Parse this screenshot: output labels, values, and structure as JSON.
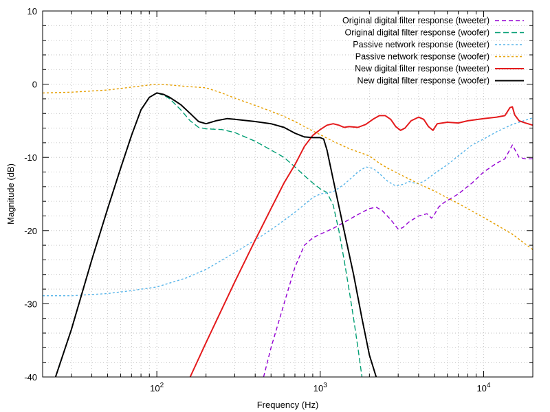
{
  "chart_data": {
    "type": "line",
    "xlabel": "Frequency (Hz)",
    "ylabel": "Magnitude (dB)",
    "xscale": "log",
    "xlim": [
      20,
      20000
    ],
    "ylim": [
      -40,
      10
    ],
    "x_ticks": [
      {
        "value": 100,
        "base": "10",
        "exp": "2"
      },
      {
        "value": 1000,
        "base": "10",
        "exp": "3"
      },
      {
        "value": 10000,
        "base": "10",
        "exp": "4"
      }
    ],
    "y_ticks": [
      {
        "value": 10,
        "label": "10"
      },
      {
        "value": 0,
        "label": "0"
      },
      {
        "value": -10,
        "label": "-10"
      },
      {
        "value": -20,
        "label": "-20"
      },
      {
        "value": -30,
        "label": "-30"
      },
      {
        "value": -40,
        "label": "-40"
      }
    ],
    "grid": true,
    "legend_position": "top-right",
    "series": [
      {
        "name": "Original digital filter response (tweeter)",
        "color": "#9400d3",
        "dash": "6,4",
        "width": 1.4,
        "points": [
          [
            450,
            -40
          ],
          [
            500,
            -36
          ],
          [
            600,
            -30
          ],
          [
            700,
            -25
          ],
          [
            800,
            -22
          ],
          [
            900,
            -21
          ],
          [
            1000,
            -20.5
          ],
          [
            1200,
            -19.7
          ],
          [
            1500,
            -18.5
          ],
          [
            1800,
            -17.5
          ],
          [
            2000,
            -17
          ],
          [
            2200,
            -16.8
          ],
          [
            2400,
            -17.3
          ],
          [
            2700,
            -18.5
          ],
          [
            3000,
            -19.8
          ],
          [
            3200,
            -19.6
          ],
          [
            3500,
            -18.8
          ],
          [
            4000,
            -18
          ],
          [
            4500,
            -17.7
          ],
          [
            4800,
            -18.3
          ],
          [
            5000,
            -17.8
          ],
          [
            5300,
            -16.8
          ],
          [
            5700,
            -16.2
          ],
          [
            7000,
            -15
          ],
          [
            8500,
            -13.5
          ],
          [
            10000,
            -12
          ],
          [
            12000,
            -10.8
          ],
          [
            13500,
            -10.2
          ],
          [
            15000,
            -8.3
          ],
          [
            16500,
            -10
          ],
          [
            18000,
            -10.2
          ],
          [
            20000,
            -10.2
          ]
        ]
      },
      {
        "name": "Original digital filter response (woofer)",
        "color": "#009e73",
        "dash": "8,4",
        "width": 1.4,
        "points": [
          [
            24,
            -40
          ],
          [
            30,
            -33.5
          ],
          [
            40,
            -24
          ],
          [
            50,
            -17
          ],
          [
            60,
            -11.5
          ],
          [
            70,
            -7
          ],
          [
            80,
            -3.5
          ],
          [
            90,
            -1.8
          ],
          [
            100,
            -1.2
          ],
          [
            110,
            -1.5
          ],
          [
            120,
            -2
          ],
          [
            140,
            -3.5
          ],
          [
            160,
            -5
          ],
          [
            180,
            -5.9
          ],
          [
            200,
            -6.1
          ],
          [
            250,
            -6.2
          ],
          [
            300,
            -6.6
          ],
          [
            400,
            -7.8
          ],
          [
            500,
            -9
          ],
          [
            600,
            -10
          ],
          [
            700,
            -11.3
          ],
          [
            800,
            -12.5
          ],
          [
            900,
            -13.5
          ],
          [
            1000,
            -14.3
          ],
          [
            1100,
            -14.8
          ],
          [
            1200,
            -16.5
          ],
          [
            1300,
            -20
          ],
          [
            1400,
            -24
          ],
          [
            1500,
            -28
          ],
          [
            1600,
            -32
          ],
          [
            1700,
            -36
          ],
          [
            1800,
            -40
          ]
        ]
      },
      {
        "name": "Passive network response (tweeter)",
        "color": "#56b4e9",
        "dash": "3,3",
        "width": 1.4,
        "points": [
          [
            20,
            -28.9
          ],
          [
            30,
            -28.9
          ],
          [
            50,
            -28.6
          ],
          [
            70,
            -28.2
          ],
          [
            100,
            -27.7
          ],
          [
            150,
            -26.5
          ],
          [
            200,
            -25.3
          ],
          [
            300,
            -23
          ],
          [
            400,
            -21.3
          ],
          [
            500,
            -19.9
          ],
          [
            700,
            -17.5
          ],
          [
            900,
            -15.5
          ],
          [
            1000,
            -15
          ],
          [
            1200,
            -14.7
          ],
          [
            1400,
            -13.7
          ],
          [
            1700,
            -12
          ],
          [
            1900,
            -11.3
          ],
          [
            2100,
            -11.5
          ],
          [
            2300,
            -12.2
          ],
          [
            2600,
            -13.3
          ],
          [
            2900,
            -13.9
          ],
          [
            3200,
            -13.7
          ],
          [
            3500,
            -13.3
          ],
          [
            3900,
            -13.6
          ],
          [
            4300,
            -13.3
          ],
          [
            5000,
            -12.2
          ],
          [
            6000,
            -11
          ],
          [
            7000,
            -9.8
          ],
          [
            8500,
            -8.3
          ],
          [
            10000,
            -7.5
          ],
          [
            12000,
            -6.5
          ],
          [
            15000,
            -5.5
          ],
          [
            20000,
            -4.6
          ]
        ]
      },
      {
        "name": "Passive network response (woofer)",
        "color": "#e69f00",
        "dash": "3,3",
        "width": 1.4,
        "points": [
          [
            20,
            -1.2
          ],
          [
            30,
            -1.1
          ],
          [
            50,
            -0.8
          ],
          [
            70,
            -0.4
          ],
          [
            90,
            -0.1
          ],
          [
            100,
            0
          ],
          [
            120,
            -0.1
          ],
          [
            150,
            -0.3
          ],
          [
            200,
            -0.5
          ],
          [
            250,
            -1.2
          ],
          [
            300,
            -1.9
          ],
          [
            400,
            -2.9
          ],
          [
            500,
            -3.7
          ],
          [
            600,
            -4.4
          ],
          [
            700,
            -5.1
          ],
          [
            800,
            -5.8
          ],
          [
            1000,
            -6.9
          ],
          [
            1200,
            -7.8
          ],
          [
            1500,
            -8.8
          ],
          [
            2000,
            -9.8
          ],
          [
            2300,
            -10.8
          ],
          [
            2600,
            -11.5
          ],
          [
            3000,
            -12.2
          ],
          [
            4000,
            -13.6
          ],
          [
            5000,
            -14.6
          ],
          [
            7000,
            -16.3
          ],
          [
            10000,
            -18.2
          ],
          [
            15000,
            -20.5
          ],
          [
            20000,
            -22.6
          ]
        ]
      },
      {
        "name": "New digital filter response (tweeter)",
        "color": "#e41a1c",
        "dash": "",
        "width": 2,
        "points": [
          [
            160,
            -40
          ],
          [
            200,
            -35.3
          ],
          [
            300,
            -27
          ],
          [
            400,
            -21.3
          ],
          [
            500,
            -17
          ],
          [
            600,
            -13.5
          ],
          [
            700,
            -11
          ],
          [
            800,
            -8.5
          ],
          [
            900,
            -7
          ],
          [
            1000,
            -6.2
          ],
          [
            1100,
            -5.6
          ],
          [
            1200,
            -5.4
          ],
          [
            1300,
            -5.6
          ],
          [
            1400,
            -5.9
          ],
          [
            1500,
            -5.8
          ],
          [
            1700,
            -5.9
          ],
          [
            1900,
            -5.5
          ],
          [
            2100,
            -4.8
          ],
          [
            2300,
            -4.3
          ],
          [
            2500,
            -4.3
          ],
          [
            2700,
            -4.8
          ],
          [
            2900,
            -5.8
          ],
          [
            3100,
            -6.3
          ],
          [
            3300,
            -6
          ],
          [
            3600,
            -5
          ],
          [
            4000,
            -4.5
          ],
          [
            4300,
            -4.8
          ],
          [
            4600,
            -5.8
          ],
          [
            4900,
            -6.3
          ],
          [
            5200,
            -5.4
          ],
          [
            6000,
            -5.2
          ],
          [
            7000,
            -5.3
          ],
          [
            8000,
            -5
          ],
          [
            10000,
            -4.7
          ],
          [
            12000,
            -4.5
          ],
          [
            13500,
            -4.3
          ],
          [
            14500,
            -3.2
          ],
          [
            15000,
            -3.1
          ],
          [
            15500,
            -4.2
          ],
          [
            16500,
            -5
          ],
          [
            18000,
            -5.3
          ],
          [
            20000,
            -5.6
          ]
        ]
      },
      {
        "name": "New digital filter response (woofer)",
        "color": "#000000",
        "dash": "",
        "width": 2,
        "points": [
          [
            24,
            -40
          ],
          [
            30,
            -33.5
          ],
          [
            40,
            -24
          ],
          [
            50,
            -17
          ],
          [
            60,
            -11.5
          ],
          [
            70,
            -7
          ],
          [
            80,
            -3.5
          ],
          [
            90,
            -1.8
          ],
          [
            100,
            -1.2
          ],
          [
            110,
            -1.4
          ],
          [
            120,
            -1.8
          ],
          [
            140,
            -2.8
          ],
          [
            160,
            -4
          ],
          [
            180,
            -5.1
          ],
          [
            200,
            -5.4
          ],
          [
            230,
            -5
          ],
          [
            270,
            -4.7
          ],
          [
            300,
            -4.8
          ],
          [
            400,
            -5.1
          ],
          [
            500,
            -5.4
          ],
          [
            600,
            -5.9
          ],
          [
            700,
            -6.7
          ],
          [
            800,
            -7.2
          ],
          [
            900,
            -7.3
          ],
          [
            1000,
            -7.3
          ],
          [
            1050,
            -7.5
          ],
          [
            1100,
            -9
          ],
          [
            1200,
            -13
          ],
          [
            1400,
            -20
          ],
          [
            1600,
            -26
          ],
          [
            1800,
            -32
          ],
          [
            2000,
            -37
          ],
          [
            2200,
            -40
          ]
        ]
      }
    ]
  }
}
